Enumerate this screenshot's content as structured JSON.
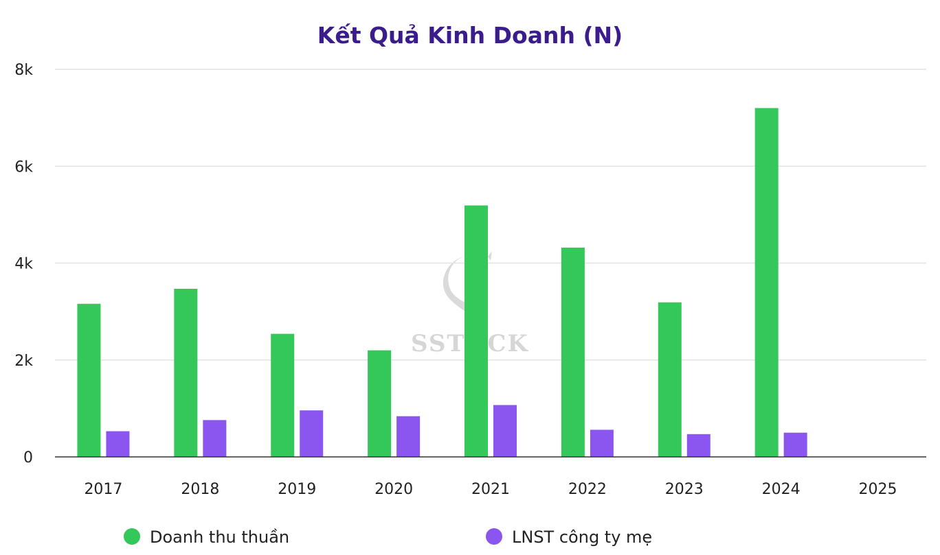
{
  "colors": {
    "title": "#3b1c8c",
    "revenue": "#34c759",
    "profit": "#8b55f0",
    "grid": "#e3e3e3",
    "axis": "#333333",
    "watermark": "#d6d6d6"
  },
  "watermark": {
    "text": "SSTOCK",
    "icon": "s-logo-icon"
  },
  "chart_data": {
    "type": "bar",
    "title": "Kết Quả Kinh Doanh (N)",
    "xlabel": "",
    "ylabel": "",
    "categories": [
      "2017",
      "2018",
      "2019",
      "2020",
      "2021",
      "2022",
      "2023",
      "2024",
      "2025"
    ],
    "series": [
      {
        "name": "Doanh thu thuần",
        "values": [
          3160,
          3470,
          2540,
          2200,
          5190,
          4320,
          3190,
          7200,
          null
        ]
      },
      {
        "name": "LNST công ty mẹ",
        "values": [
          530,
          760,
          960,
          840,
          1070,
          560,
          470,
          500,
          null
        ]
      }
    ],
    "ylim": [
      0,
      8000
    ],
    "yticks": [
      0,
      2000,
      4000,
      6000,
      8000
    ],
    "ytick_labels": [
      "0",
      "2k",
      "4k",
      "6k",
      "8k"
    ],
    "grid": true,
    "legend_position": "bottom"
  }
}
